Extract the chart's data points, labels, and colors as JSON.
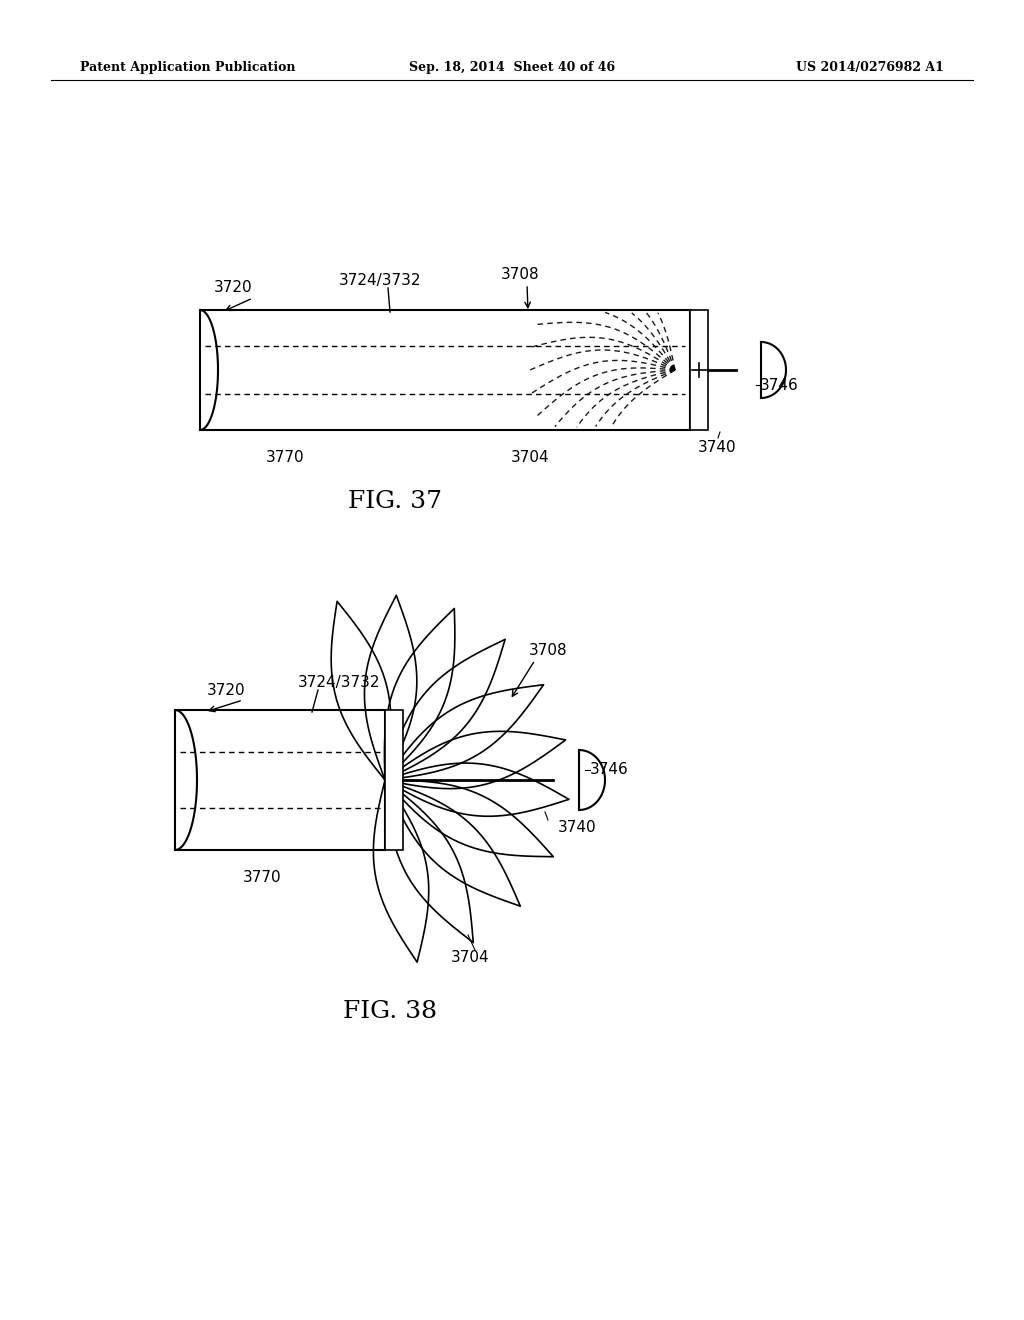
{
  "bg_color": "#ffffff",
  "header_left": "Patent Application Publication",
  "header_mid": "Sep. 18, 2014  Sheet 40 of 46",
  "header_right": "US 2014/0276982 A1",
  "fig37_label": "FIG. 37",
  "fig38_label": "FIG. 38"
}
